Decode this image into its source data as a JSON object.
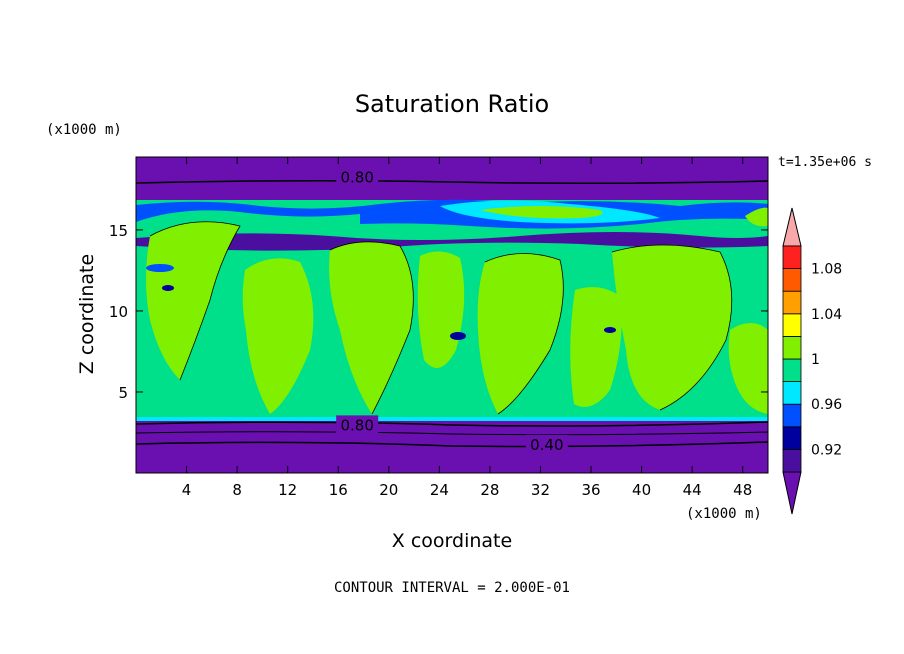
{
  "chart_data": {
    "type": "heatmap",
    "title": "Saturation Ratio",
    "xlabel": "X coordinate",
    "ylabel": "Z coordinate",
    "x_unit": "(x1000 m)",
    "z_unit": "(x1000 m)",
    "time_label": "t=1.35e+06 s",
    "footer": "CONTOUR INTERVAL = 2.000E-01",
    "xlim": [
      0,
      50
    ],
    "ylim": [
      0,
      19.5
    ],
    "x_ticks": [
      4,
      8,
      12,
      16,
      20,
      24,
      28,
      32,
      36,
      40,
      44,
      48
    ],
    "y_ticks": [
      5,
      10,
      15
    ],
    "contour_line_labels": [
      {
        "text": "0.80",
        "x": 17.5,
        "z": 18.3
      },
      {
        "text": "0.80",
        "x": 17.5,
        "z": 3.0
      },
      {
        "text": "0.40",
        "x": 32.5,
        "z": 1.8
      }
    ],
    "colorbar": {
      "levels": [
        0.92,
        0.94,
        0.96,
        0.98,
        1.0,
        1.02,
        1.04,
        1.06,
        1.08,
        1.1
      ],
      "labeled_levels": [
        "0.92",
        "0.96",
        "1",
        "1.04",
        "1.08"
      ],
      "colors": [
        "#4b0fa0",
        "#00009e",
        "#0050ff",
        "#00e8ff",
        "#00e08a",
        "#80f000",
        "#ffff00",
        "#ffa000",
        "#ff5a00",
        "#ff2020"
      ],
      "under_color": "#6a0fb0",
      "over_color": "#f8a8a8"
    },
    "field_summary": [
      {
        "z_range": [
          0,
          3.4
        ],
        "value": "< 0.92 (0.40–0.80)"
      },
      {
        "z_range": [
          3.4,
          15.5
        ],
        "value": "0.98–1.02 (mostly 1.00–1.02 in plumes)"
      },
      {
        "z_range": [
          15.5,
          17.2
        ],
        "value": "0.92–0.98 banded"
      },
      {
        "z_range": [
          17.2,
          19.5
        ],
        "value": "< 0.92 (~0.80)"
      }
    ]
  }
}
